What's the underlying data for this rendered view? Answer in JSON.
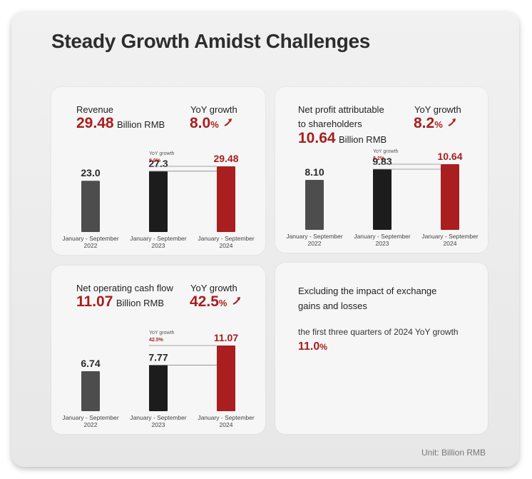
{
  "title": "Steady Growth Amidst Challenges",
  "footer": "Unit: Billion RMB",
  "colors": {
    "accent": "#a91e1e",
    "bar_2022": "#4d4d4d",
    "bar_2023": "#1c1c1c",
    "bar_2024": "#a91e1e"
  },
  "arrow_icon": "up-right-arrow-icon",
  "cards": {
    "revenue": {
      "label": "Revenue",
      "value": "29.48",
      "unit": "Billion RMB",
      "yoy_label": "YoY growth",
      "yoy_value": "8.0",
      "yoy_pct": "%",
      "small_yoy_label": "YoY growth",
      "small_yoy_value": "8.0%"
    },
    "net_profit": {
      "label_line1": "Net profit attributable",
      "label_line2": "to shareholders",
      "value": "10.64",
      "unit": "Billion RMB",
      "yoy_label": "YoY growth",
      "yoy_value": "8.2",
      "yoy_pct": "%",
      "small_yoy_label": "YoY growth",
      "small_yoy_value": "8.2%"
    },
    "cash_flow": {
      "label": "Net operating cash flow",
      "value": "11.07",
      "unit": "Billion RMB",
      "yoy_label": "YoY growth",
      "yoy_value": "42.5",
      "yoy_pct": "%",
      "small_yoy_label": "YoY growth",
      "small_yoy_value": "42.5%"
    }
  },
  "note": {
    "line1": "Excluding the impact of exchange",
    "line2": "gains and losses",
    "sub": "the first three quarters of 2024 YoY growth",
    "value": "11.0",
    "pct": "%"
  },
  "chart_data": [
    {
      "type": "bar",
      "categories": [
        [
          "January - September",
          "2022"
        ],
        [
          "January - September",
          "2023"
        ],
        [
          "January - September",
          "2024"
        ]
      ],
      "values": [
        23.0,
        27.3,
        29.48
      ],
      "labels": [
        "23.0",
        "27.3",
        "29.48"
      ]
    },
    {
      "type": "bar",
      "categories": [
        [
          "January - September",
          "2022"
        ],
        [
          "January - September",
          "2023"
        ],
        [
          "January - September",
          "2024"
        ]
      ],
      "values": [
        8.1,
        9.83,
        10.64
      ],
      "labels": [
        "8.10",
        "9.83",
        "10.64"
      ]
    },
    {
      "type": "bar",
      "categories": [
        [
          "January - September",
          "2022"
        ],
        [
          "January - September",
          "2023"
        ],
        [
          "January - September",
          "2024"
        ]
      ],
      "values": [
        6.74,
        7.77,
        11.07
      ],
      "labels": [
        "6.74",
        "7.77",
        "11.07"
      ]
    }
  ]
}
